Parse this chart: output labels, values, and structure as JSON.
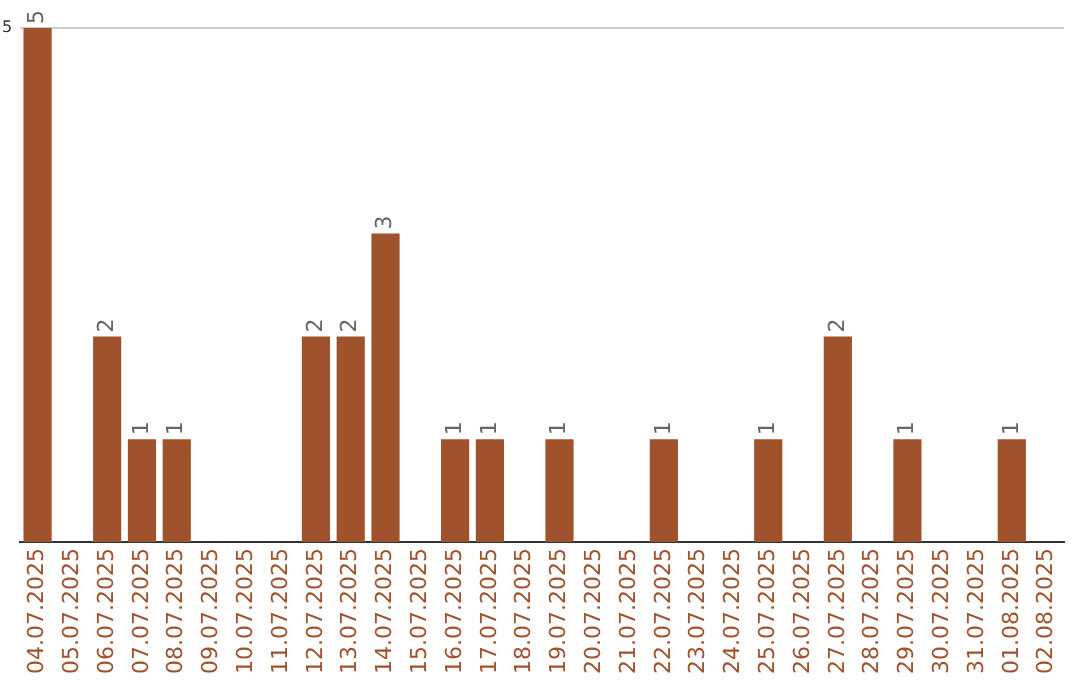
{
  "chart_data": {
    "type": "bar",
    "categories": [
      "04.07.2025",
      "05.07.2025",
      "06.07.2025",
      "07.07.2025",
      "08.07.2025",
      "09.07.2025",
      "10.07.2025",
      "11.07.2025",
      "12.07.2025",
      "13.07.2025",
      "14.07.2025",
      "15.07.2025",
      "16.07.2025",
      "17.07.2025",
      "18.07.2025",
      "19.07.2025",
      "20.07.2025",
      "21.07.2025",
      "22.07.2025",
      "23.07.2025",
      "24.07.2025",
      "25.07.2025",
      "26.07.2025",
      "27.07.2025",
      "28.07.2025",
      "29.07.2025",
      "30.07.2025",
      "31.07.2025",
      "01.08.2025",
      "02.08.2025"
    ],
    "values": [
      5,
      0,
      2,
      1,
      1,
      0,
      0,
      0,
      2,
      2,
      3,
      0,
      1,
      1,
      0,
      1,
      0,
      0,
      1,
      0,
      0,
      1,
      0,
      2,
      0,
      1,
      0,
      0,
      1,
      0
    ],
    "value_labels": [
      "5",
      null,
      "2",
      "1",
      "1",
      null,
      null,
      null,
      "2",
      "2",
      "3",
      null,
      "1",
      "1",
      null,
      "1",
      null,
      null,
      "1",
      null,
      null,
      "1",
      null,
      "2",
      null,
      "1",
      null,
      null,
      "1",
      null
    ],
    "color": "#a0522d",
    "ylim": [
      0,
      5
    ],
    "yticks": [
      5
    ],
    "ref_lines": [
      {
        "axis": "y",
        "value": 5,
        "color": "#cccccc"
      }
    ],
    "legend": false
  }
}
